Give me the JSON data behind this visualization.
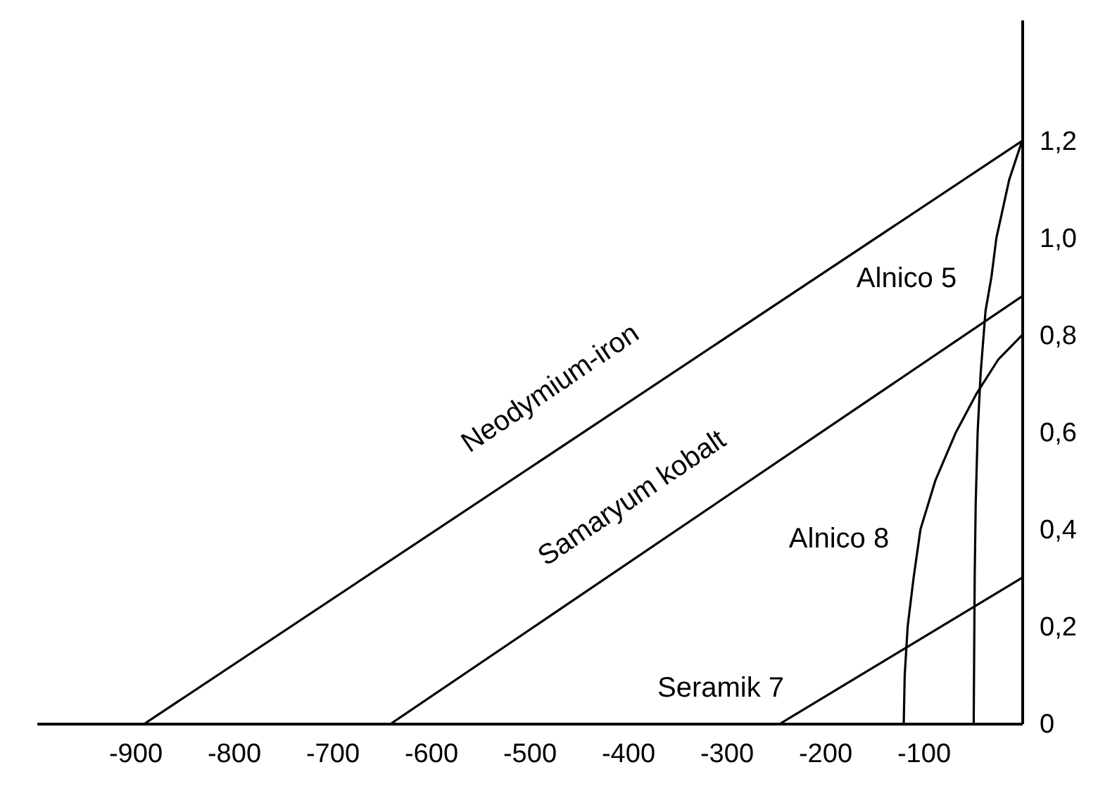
{
  "chart_data": {
    "type": "line",
    "xlim": [
      -1000,
      0
    ],
    "ylim": [
      0,
      1.45
    ],
    "xticks": [
      -900,
      -800,
      -700,
      -600,
      -500,
      -400,
      -300,
      -200,
      -100
    ],
    "yticks": [
      0,
      {
        "value": 0.2,
        "label": "0,2"
      },
      {
        "value": 0.4,
        "label": "0,4"
      },
      {
        "value": 0.6,
        "label": "0,6"
      },
      {
        "value": 0.8,
        "label": "0,8"
      },
      {
        "value": 1.0,
        "label": "1,0"
      },
      {
        "value": 1.2,
        "label": "1,2"
      }
    ],
    "grid": false,
    "legend": false,
    "marker": "none",
    "line_style": "solid",
    "series": [
      {
        "color": "#000000",
        "x": [
          -890,
          0
        ],
        "values": [
          0,
          1.2
        ]
      },
      {
        "color": "#000000",
        "x": [
          -640,
          0
        ],
        "values": [
          0,
          0.88
        ]
      },
      {
        "color": "#000000",
        "x": [
          -245,
          0
        ],
        "values": [
          0,
          0.3
        ]
      },
      {
        "color": "#000000",
        "x": [
          -120,
          -119,
          -116,
          -110,
          -103,
          -88,
          -67,
          -46,
          -24,
          0
        ],
        "values": [
          0,
          0.1,
          0.2,
          0.3,
          0.4,
          0.5,
          0.6,
          0.68,
          0.75,
          0.8
        ]
      },
      {
        "color": "#000000",
        "x": [
          -49,
          -48,
          -47,
          -45,
          -42,
          -37,
          -31,
          -26,
          -13,
          0
        ],
        "values": [
          0,
          0.3,
          0.45,
          0.6,
          0.72,
          0.85,
          0.92,
          1.0,
          1.12,
          1.2
        ]
      }
    ],
    "annotations": [
      "Neodymium-iron",
      "Samaryum kobalt",
      "Alnico 5",
      "Alnico 8",
      "Seramik 7"
    ]
  }
}
